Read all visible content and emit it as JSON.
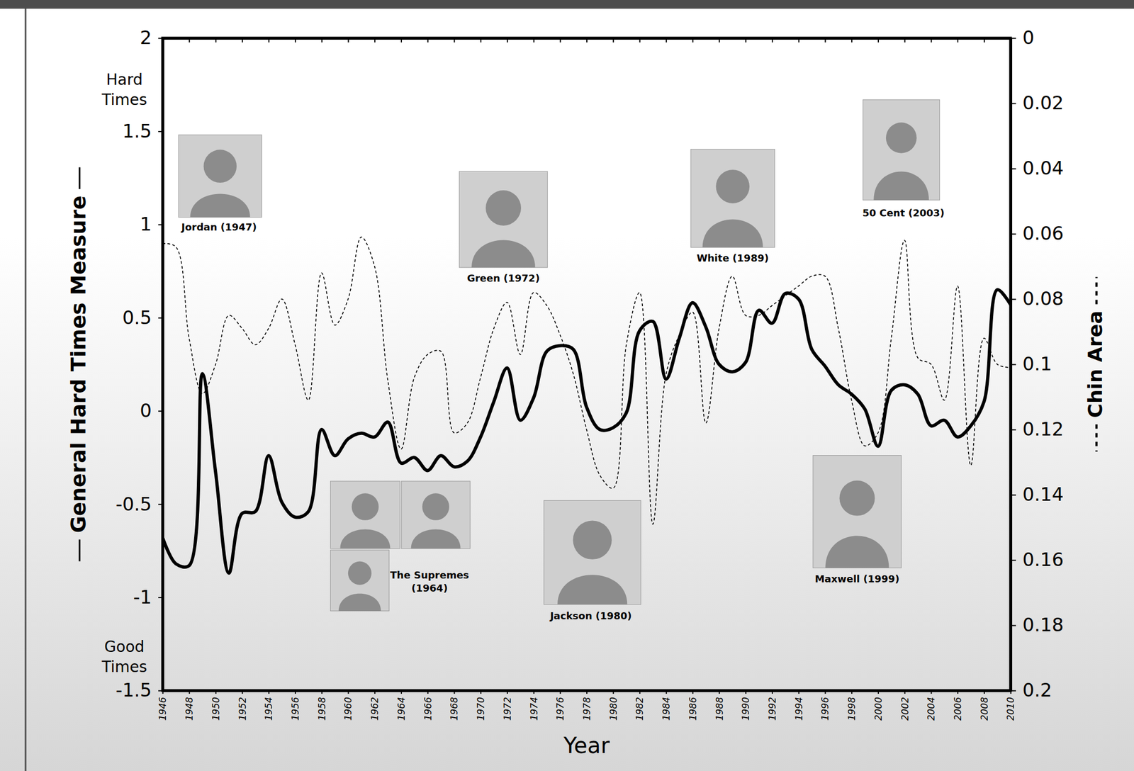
{
  "chart_data": {
    "type": "line",
    "xlabel": "Year",
    "ylabel": "General Hard Times Measure",
    "y2label": "Chin Area",
    "y_end_labels": [
      "Hard Times",
      "Good Times"
    ],
    "x": [
      1946,
      1947,
      1948,
      1949,
      1950,
      1951,
      1952,
      1953,
      1954,
      1955,
      1956,
      1957,
      1958,
      1959,
      1960,
      1961,
      1962,
      1963,
      1964,
      1965,
      1966,
      1967,
      1968,
      1969,
      1970,
      1971,
      1972,
      1973,
      1974,
      1975,
      1976,
      1977,
      1978,
      1979,
      1980,
      1981,
      1982,
      1983,
      1984,
      1985,
      1986,
      1987,
      1988,
      1989,
      1990,
      1991,
      1992,
      1993,
      1994,
      1995,
      1996,
      1997,
      1998,
      1999,
      2000,
      2001,
      2002,
      2003,
      2004,
      2005,
      2006,
      2007,
      2008,
      2009,
      2010
    ],
    "xlim": [
      1946,
      2010
    ],
    "xticks": [
      1946,
      1948,
      1950,
      1952,
      1954,
      1956,
      1958,
      1960,
      1962,
      1964,
      1966,
      1968,
      1970,
      1972,
      1974,
      1976,
      1978,
      1980,
      1982,
      1984,
      1986,
      1988,
      1990,
      1992,
      1994,
      1996,
      1998,
      2000,
      2002,
      2004,
      2006,
      2008,
      2010
    ],
    "ylim": [
      -1.5,
      2
    ],
    "yticks": [
      -1.5,
      -1,
      -0.5,
      0,
      0.5,
      1,
      1.5,
      2
    ],
    "y2lim": [
      0.2,
      0
    ],
    "y2ticks": [
      0,
      0.02,
      0.04,
      0.06,
      0.08,
      0.1,
      0.12,
      0.14,
      0.16,
      0.18,
      0.2
    ],
    "grid": false,
    "series": [
      {
        "color": "#000000",
        "line_style": "solid",
        "values": [
          -0.68,
          -0.82,
          -0.83,
          0.2,
          -0.33,
          -0.87,
          -0.55,
          -0.54,
          -0.24,
          -0.49,
          -0.57,
          -0.54,
          -0.1,
          -0.24,
          -0.15,
          -0.12,
          -0.14,
          -0.06,
          -0.28,
          -0.25,
          -0.32,
          -0.24,
          -0.3,
          -0.27,
          -0.14,
          0.05,
          0.23,
          -0.05,
          0.07,
          0.32,
          0.35,
          0.33,
          0.02,
          -0.1,
          -0.09,
          -0.01,
          0.43,
          0.48,
          0.17,
          0.39,
          0.58,
          0.45,
          0.25,
          0.21,
          0.26,
          0.54,
          0.47,
          0.63,
          0.6,
          0.33,
          0.24,
          0.14,
          0.09,
          0.01,
          -0.19,
          0.11,
          0.14,
          0.09,
          -0.08,
          -0.05,
          -0.14,
          -0.08,
          0.05,
          0.65,
          0.57
        ]
      },
      {
        "color": "#000000",
        "line_style": "dashed",
        "axis": "y2",
        "values": [
          0.063,
          0.064,
          0.092,
          0.109,
          0.1,
          0.085,
          0.089,
          0.094,
          0.089,
          0.08,
          0.094,
          0.111,
          0.072,
          0.088,
          0.08,
          0.061,
          0.07,
          0.105,
          0.126,
          0.104,
          0.097,
          0.096,
          0.121,
          0.118,
          0.104,
          0.089,
          0.081,
          0.097,
          0.078,
          0.082,
          0.091,
          0.103,
          0.12,
          0.134,
          0.138,
          0.094,
          0.078,
          0.149,
          0.103,
          0.091,
          0.084,
          0.118,
          0.089,
          0.073,
          0.085,
          0.085,
          0.082,
          0.079,
          0.076,
          0.073,
          0.073,
          0.089,
          0.111,
          0.125,
          0.121,
          0.092,
          0.062,
          0.098,
          0.1,
          0.111,
          0.076,
          0.131,
          0.092,
          0.1,
          0.101
        ]
      }
    ],
    "annotations": [
      {
        "text": "Jordan (1947)"
      },
      {
        "text": "The Supremes (1964)"
      },
      {
        "text": "Green (1972)"
      },
      {
        "text": "Jackson (1980)"
      },
      {
        "text": "White (1989)"
      },
      {
        "text": "Maxwell (1999)"
      },
      {
        "text": "50 Cent (2003)"
      }
    ]
  }
}
